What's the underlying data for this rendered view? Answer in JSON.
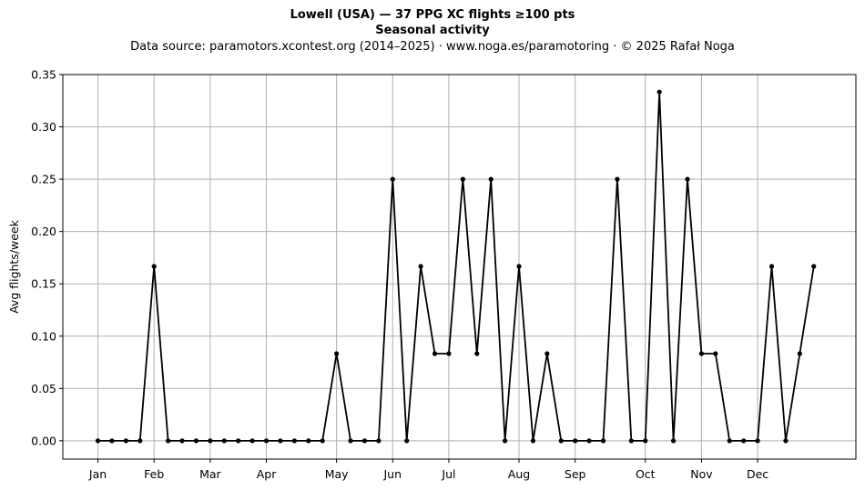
{
  "header": {
    "title_line1": "Lowell (USA)  —  37 PPG XC flights ≥100 pts",
    "title_line2": "Seasonal activity",
    "subtitle": "Data source: paramotors.xcontest.org (2014–2025)  ·  www.noga.es/paramotoring  ·  © 2025 Rafał Noga"
  },
  "chart_data": {
    "type": "line",
    "title": "Lowell (USA)  —  37 PPG XC flights ≥100 pts",
    "subtitle": "Seasonal activity",
    "xlabel": "",
    "ylabel": "Avg flights/week",
    "x_unit": "week of year",
    "xlim": [
      -1.5,
      55
    ],
    "ylim": [
      -0.0175,
      0.35
    ],
    "yticks": [
      0.0,
      0.05,
      0.1,
      0.15,
      0.2,
      0.25,
      0.3,
      0.35
    ],
    "ytick_labels": [
      "0.00",
      "0.05",
      "0.10",
      "0.15",
      "0.20",
      "0.25",
      "0.30",
      "0.35"
    ],
    "xticks": [
      1,
      5,
      9,
      13,
      18,
      22,
      26,
      31,
      35,
      40,
      44,
      48
    ],
    "xtick_labels": [
      "Jan",
      "Feb",
      "Mar",
      "Apr",
      "May",
      "Jun",
      "Jul",
      "Aug",
      "Sep",
      "Oct",
      "Nov",
      "Dec"
    ],
    "grid": true,
    "line_color": "#000000",
    "grid_color": "#b0b0b0",
    "series": [
      {
        "x": [
          1,
          2,
          3,
          4,
          5,
          6,
          7,
          8,
          9,
          10,
          11,
          12,
          13,
          14,
          15,
          16,
          17,
          18,
          19,
          20,
          21,
          22,
          23,
          24,
          25,
          26,
          27,
          28,
          29,
          30,
          31,
          32,
          33,
          34,
          35,
          36,
          37,
          38,
          39,
          40,
          41,
          42,
          43,
          44,
          45,
          46,
          47,
          48,
          49,
          50,
          51,
          52
        ],
        "values": [
          0,
          0,
          0,
          0,
          0.1667,
          0,
          0,
          0,
          0,
          0,
          0,
          0,
          0,
          0,
          0,
          0,
          0,
          0.0833,
          0,
          0,
          0,
          0.25,
          0,
          0.1667,
          0.0833,
          0.0833,
          0.25,
          0.0833,
          0.25,
          0,
          0.1667,
          0,
          0.0833,
          0,
          0,
          0,
          0,
          0.25,
          0,
          0,
          0.3333,
          0,
          0.25,
          0.0833,
          0.0833,
          0,
          0,
          0,
          0.1667,
          0,
          0.0833,
          0.1667
        ]
      }
    ]
  }
}
